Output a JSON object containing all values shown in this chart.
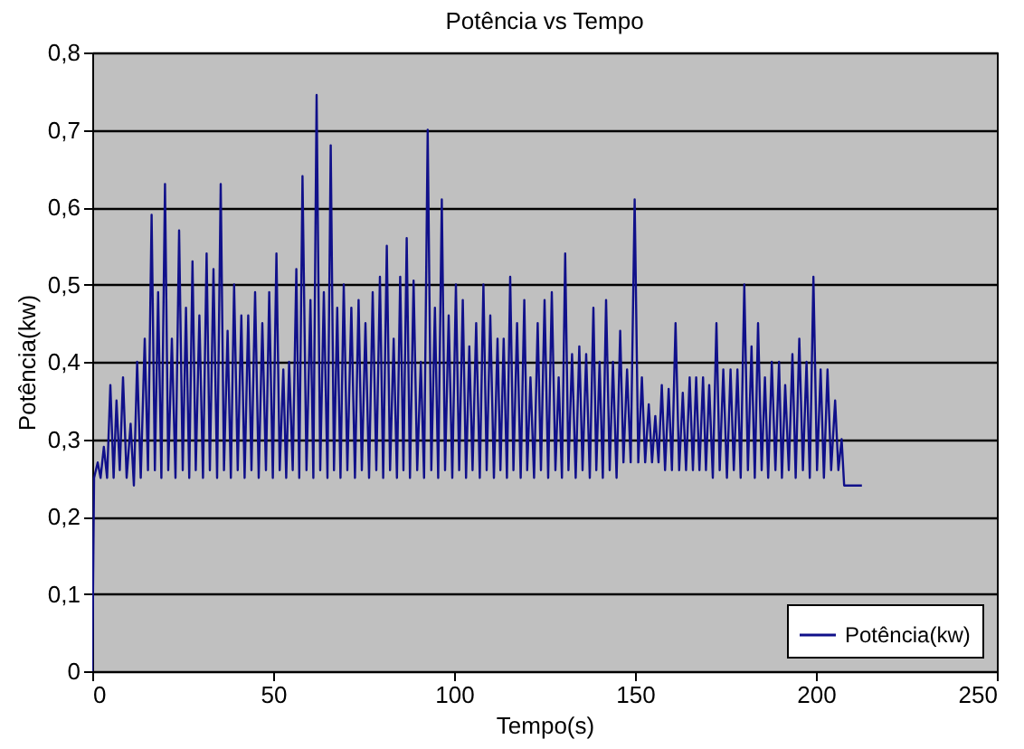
{
  "chart_data": {
    "type": "line",
    "title": "Potência vs Tempo",
    "xlabel": "Tempo(s)",
    "ylabel": "Potência(kw)",
    "xlim": [
      0,
      250
    ],
    "xticks": [
      0,
      50,
      100,
      150,
      200,
      250
    ],
    "ylim": [
      0,
      0.8
    ],
    "yticks": [
      {
        "value": 0,
        "label": "0"
      },
      {
        "value": 0.1,
        "label": "0,1"
      },
      {
        "value": 0.2,
        "label": "0,2"
      },
      {
        "value": 0.3,
        "label": "0,3"
      },
      {
        "value": 0.4,
        "label": "0,4"
      },
      {
        "value": 0.5,
        "label": "0,5"
      },
      {
        "value": 0.6,
        "label": "0,6"
      },
      {
        "value": 0.7,
        "label": "0,7"
      },
      {
        "value": 0.8,
        "label": "0,8"
      }
    ],
    "grid": "y",
    "legend": "bottom right",
    "marker": "none",
    "line_style": "solid",
    "series": [
      {
        "name": "Potência(kw)",
        "color": "#10108a",
        "x": [
          0,
          0.5,
          1.5,
          2.3,
          3.2,
          4.1,
          5,
          5.9,
          6.7,
          7.6,
          8.5,
          9.5,
          10.6,
          11.5,
          12.4,
          13.4,
          14.5,
          15.4,
          16.4,
          17.3,
          18.2,
          19.1,
          20.1,
          21,
          22,
          23,
          24,
          25,
          25.9,
          26.8,
          27.7,
          28.6,
          29.6,
          30.6,
          31.6,
          32.5,
          33.5,
          34.5,
          35.5,
          36.4,
          37.4,
          38.3,
          39.2,
          40.2,
          41.2,
          42.1,
          43.1,
          44,
          45,
          46,
          47,
          48,
          48.9,
          49.9,
          50.9,
          51.8,
          52.8,
          53.6,
          54.4,
          55.4,
          56.4,
          57.2,
          58.1,
          59.2,
          60.3,
          61.1,
          62,
          63,
          64,
          65,
          65.9,
          66.8,
          67.7,
          68.6,
          69.5,
          70.5,
          71.6,
          72.6,
          73.6,
          74.5,
          75.5,
          76.5,
          77.5,
          78.5,
          79.5,
          80.4,
          81.4,
          82.3,
          83.3,
          84.2,
          85.1,
          86,
          86.9,
          87.8,
          88.8,
          89.8,
          90.8,
          91.7,
          92.7,
          93.7,
          94.7,
          95.6,
          96.6,
          97.5,
          98.5,
          99.5,
          100.5,
          101.4,
          102.4,
          103.3,
          104.2,
          105.1,
          106.1,
          107.1,
          108.1,
          109,
          110,
          111,
          112,
          112.8,
          113.7,
          114.6,
          115.5,
          116.4,
          117.4,
          118.4,
          119.4,
          120.2,
          121.1,
          122.1,
          123.1,
          124,
          125,
          126,
          127,
          128,
          128.9,
          129.8,
          130.7,
          131.6,
          132.6,
          133.6,
          134.6,
          135.5,
          136.5,
          137.5,
          138.5,
          139.3,
          140.2,
          141.1,
          142,
          143,
          143.9,
          144.9,
          145.9,
          146.8,
          147.8,
          148.8,
          149.9,
          150.9,
          151.9,
          152.8,
          153.8,
          154.7,
          155.6,
          156.5,
          157.4,
          158.3,
          159.3,
          160.2,
          161.2,
          162.2,
          163.2,
          164.1,
          165.1,
          166,
          166.9,
          167.8,
          168.8,
          169.6,
          170.5,
          171.5,
          172.5,
          173.4,
          174.4,
          175.4,
          176.4,
          177.3,
          178.3,
          179.2,
          180.2,
          181.2,
          182.2,
          183.1,
          184,
          185,
          185.9,
          186.8,
          187.8,
          188.8,
          189.8,
          190.6,
          191.5,
          192.5,
          193.5,
          194.4,
          195.4,
          196.4,
          197.4,
          198.3,
          199.3,
          200.3,
          201.3,
          202.2,
          203.2,
          204.2,
          205.3,
          206.2,
          207.1,
          207.8,
          212.7
        ],
        "values": [
          0,
          0.25,
          0.27,
          0.25,
          0.29,
          0.25,
          0.37,
          0.25,
          0.35,
          0.26,
          0.38,
          0.25,
          0.32,
          0.24,
          0.4,
          0.25,
          0.43,
          0.26,
          0.59,
          0.26,
          0.49,
          0.25,
          0.63,
          0.26,
          0.43,
          0.25,
          0.57,
          0.26,
          0.47,
          0.25,
          0.53,
          0.26,
          0.46,
          0.25,
          0.54,
          0.26,
          0.52,
          0.25,
          0.63,
          0.26,
          0.44,
          0.25,
          0.5,
          0.26,
          0.46,
          0.25,
          0.46,
          0.26,
          0.49,
          0.25,
          0.45,
          0.26,
          0.49,
          0.25,
          0.54,
          0.26,
          0.39,
          0.25,
          0.4,
          0.26,
          0.52,
          0.25,
          0.64,
          0.26,
          0.48,
          0.25,
          0.745,
          0.26,
          0.49,
          0.25,
          0.68,
          0.26,
          0.47,
          0.25,
          0.5,
          0.26,
          0.47,
          0.25,
          0.48,
          0.26,
          0.45,
          0.25,
          0.49,
          0.26,
          0.51,
          0.25,
          0.55,
          0.26,
          0.43,
          0.25,
          0.51,
          0.26,
          0.56,
          0.25,
          0.505,
          0.26,
          0.4,
          0.25,
          0.7,
          0.26,
          0.47,
          0.25,
          0.61,
          0.26,
          0.46,
          0.25,
          0.5,
          0.26,
          0.48,
          0.25,
          0.42,
          0.26,
          0.45,
          0.25,
          0.5,
          0.26,
          0.46,
          0.25,
          0.43,
          0.26,
          0.43,
          0.25,
          0.51,
          0.26,
          0.45,
          0.25,
          0.48,
          0.26,
          0.38,
          0.25,
          0.45,
          0.26,
          0.48,
          0.25,
          0.49,
          0.26,
          0.38,
          0.25,
          0.54,
          0.26,
          0.41,
          0.25,
          0.42,
          0.26,
          0.41,
          0.25,
          0.47,
          0.26,
          0.4,
          0.25,
          0.48,
          0.26,
          0.4,
          0.25,
          0.44,
          0.27,
          0.39,
          0.27,
          0.61,
          0.27,
          0.38,
          0.27,
          0.345,
          0.27,
          0.33,
          0.27,
          0.37,
          0.26,
          0.365,
          0.26,
          0.45,
          0.26,
          0.36,
          0.26,
          0.38,
          0.26,
          0.38,
          0.26,
          0.38,
          0.26,
          0.37,
          0.25,
          0.45,
          0.26,
          0.39,
          0.25,
          0.39,
          0.26,
          0.39,
          0.25,
          0.5,
          0.26,
          0.42,
          0.25,
          0.45,
          0.26,
          0.38,
          0.25,
          0.4,
          0.26,
          0.4,
          0.25,
          0.37,
          0.26,
          0.41,
          0.25,
          0.43,
          0.26,
          0.4,
          0.25,
          0.51,
          0.26,
          0.39,
          0.25,
          0.39,
          0.26,
          0.35,
          0.26,
          0.3,
          0.24,
          0.24
        ]
      }
    ]
  }
}
